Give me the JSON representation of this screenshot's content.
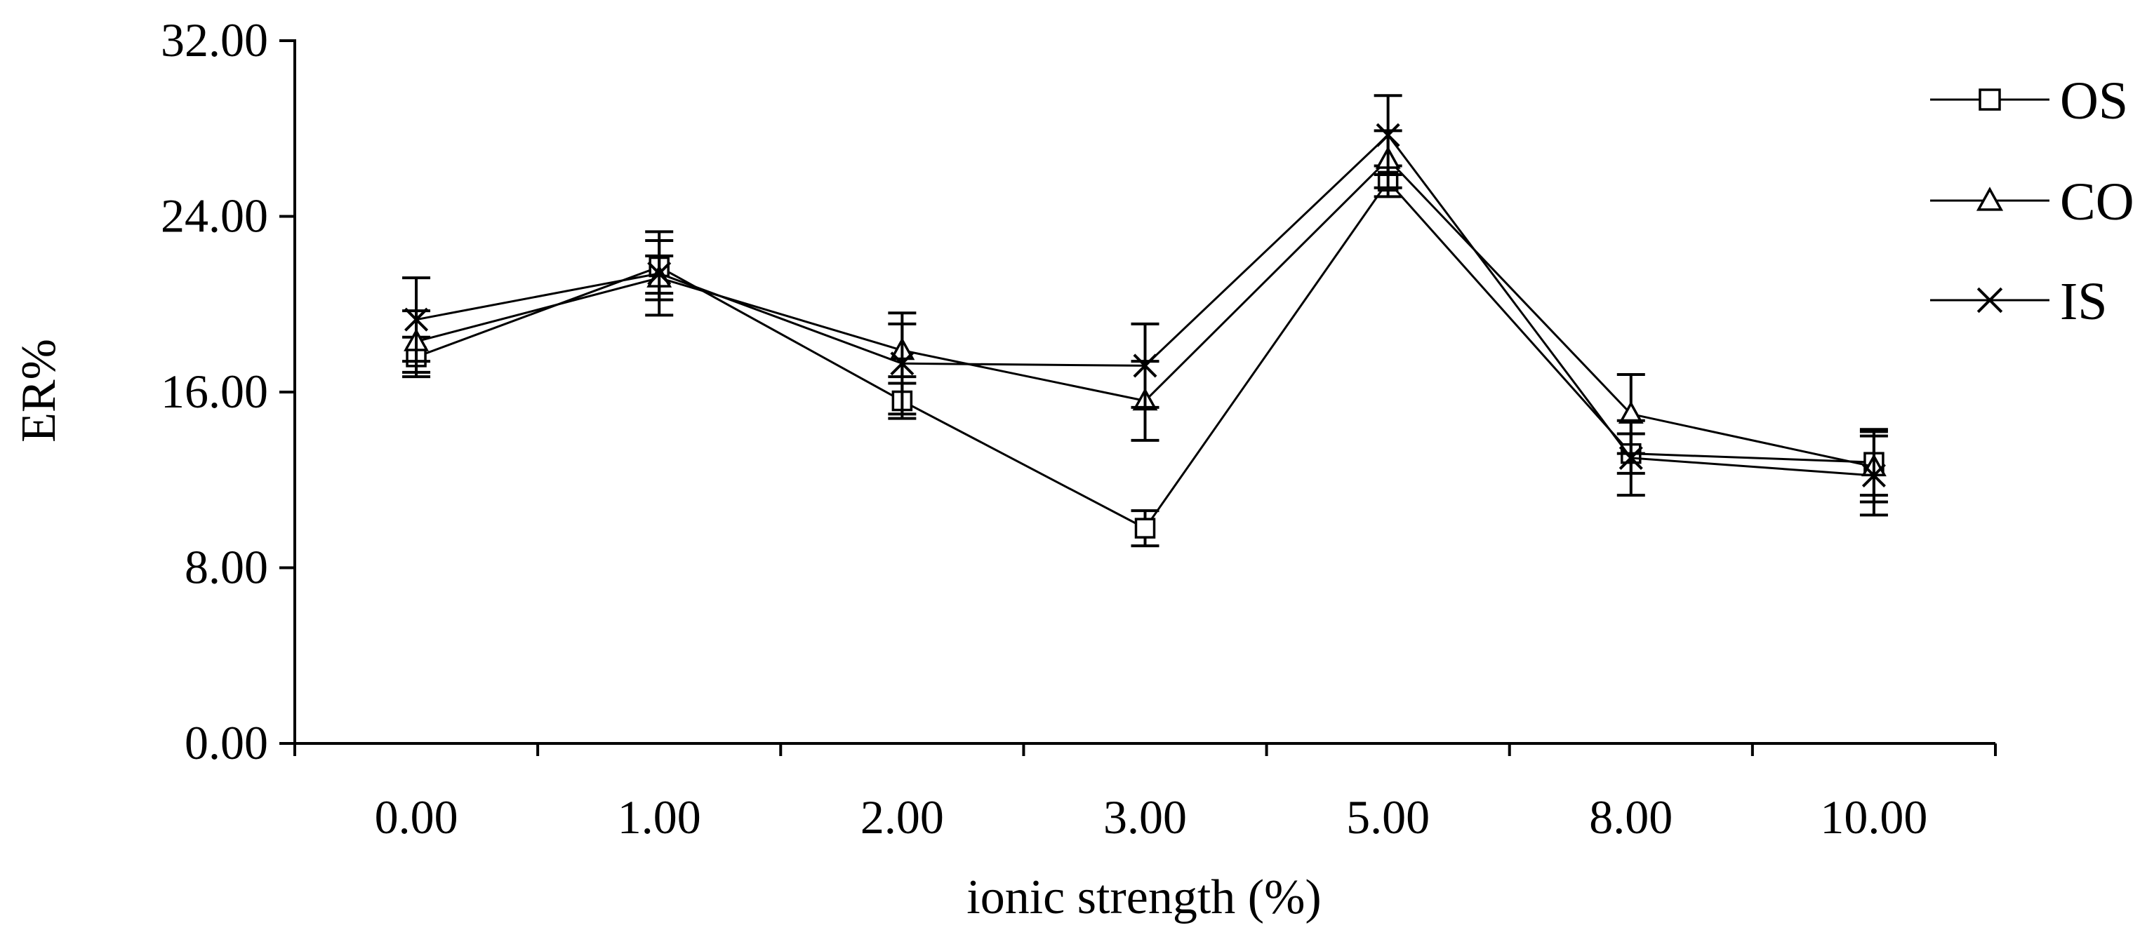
{
  "chart_data": {
    "type": "line",
    "title": "",
    "xlabel": "ionic strength (%)",
    "ylabel": "ER%",
    "categories": [
      "0.00",
      "1.00",
      "2.00",
      "3.00",
      "5.00",
      "8.00",
      "10.00"
    ],
    "ylim": [
      0,
      32
    ],
    "yticks": [
      0,
      8,
      16,
      24,
      32
    ],
    "ytick_labels": [
      "0.00",
      "8.00",
      "16.00",
      "24.00",
      "32.00"
    ],
    "grid": false,
    "legend_position": "right",
    "series": [
      {
        "name": "OS",
        "marker": "square",
        "values": [
          17.6,
          21.7,
          15.6,
          9.8,
          25.6,
          13.2,
          12.8
        ],
        "errors": [
          0.9,
          1.2,
          0.8,
          0.8,
          0.7,
          0.9,
          1.5
        ]
      },
      {
        "name": "CO",
        "marker": "triangle",
        "values": [
          18.3,
          21.2,
          17.9,
          15.6,
          26.6,
          15.0,
          12.6
        ],
        "errors": [
          1.4,
          1.0,
          1.2,
          1.8,
          1.3,
          1.8,
          1.6
        ]
      },
      {
        "name": "IS",
        "marker": "x",
        "values": [
          19.3,
          21.4,
          17.3,
          17.2,
          27.7,
          13.0,
          12.2
        ],
        "errors": [
          1.9,
          1.9,
          2.3,
          1.9,
          1.8,
          1.7,
          1.8
        ]
      }
    ],
    "color": "#000000"
  }
}
